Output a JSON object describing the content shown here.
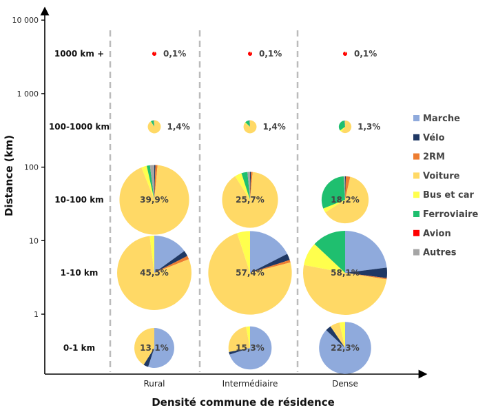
{
  "chart_data": {
    "type": "pie",
    "title": "",
    "xlabel": "Densité commune de résidence",
    "ylabel": "Distance (km)",
    "y_scale": "log",
    "ylim": [
      0.1,
      10000
    ],
    "y_ticks": [
      {
        "value": 1,
        "label": "1"
      },
      {
        "value": 10,
        "label": "10"
      },
      {
        "value": 100,
        "label": "100"
      },
      {
        "value": 1000,
        "label": "1 000"
      },
      {
        "value": 10000,
        "label": "10 000"
      }
    ],
    "categories": [
      "Rural",
      "Intermédiaire",
      "Dense"
    ],
    "distance_bands": [
      "1000 km +",
      "100-1000 km",
      "10-100 km",
      "1-10 km",
      "0-1 km"
    ],
    "modes": [
      "Marche",
      "Vélo",
      "2RM",
      "Voiture",
      "Bus et car",
      "Ferroviaire",
      "Avion",
      "Autres"
    ],
    "mode_colors": [
      "#8FAADC",
      "#1F3864",
      "#ED7D31",
      "#FFD966",
      "#FFFF4D",
      "#1FBF6F",
      "#FF0000",
      "#A5A5A5"
    ],
    "legend_position": "right",
    "pies": [
      {
        "category": "Rural",
        "band": "1000 km +",
        "label": "0,1%",
        "share": 0.1,
        "shares": [
          0,
          0,
          0,
          5,
          0,
          0,
          95,
          0
        ]
      },
      {
        "category": "Intermédiaire",
        "band": "1000 km +",
        "label": "0,1%",
        "share": 0.1,
        "shares": [
          0,
          0,
          0,
          5,
          0,
          0,
          95,
          0
        ]
      },
      {
        "category": "Dense",
        "band": "1000 km +",
        "label": "0,1%",
        "share": 0.1,
        "shares": [
          0,
          0,
          0,
          5,
          0,
          0,
          95,
          0
        ]
      },
      {
        "category": "Rural",
        "band": "100-1000 km",
        "label": "1,4%",
        "share": 1.4,
        "shares": [
          0,
          0,
          0,
          90,
          1,
          7,
          0,
          2
        ]
      },
      {
        "category": "Intermédiaire",
        "band": "100-1000 km",
        "label": "1,4%",
        "share": 1.4,
        "shares": [
          0,
          0,
          0,
          85,
          2,
          11,
          0,
          2
        ]
      },
      {
        "category": "Dense",
        "band": "100-1000 km",
        "label": "1,3%",
        "share": 1.3,
        "shares": [
          0,
          0,
          0,
          60,
          5,
          33,
          0,
          2
        ]
      },
      {
        "category": "Rural",
        "band": "10-100 km",
        "label": "39,9%",
        "share": 39.9,
        "shares": [
          0,
          0.5,
          1,
          92.5,
          2.5,
          1.5,
          0,
          2
        ]
      },
      {
        "category": "Intermédiaire",
        "band": "10-100 km",
        "label": "25,7%",
        "share": 25.7,
        "shares": [
          0,
          0.5,
          1,
          89.5,
          4,
          3.5,
          0,
          1.5
        ]
      },
      {
        "category": "Dense",
        "band": "10-100 km",
        "label": "18,2%",
        "share": 18.2,
        "shares": [
          0,
          0.5,
          3,
          62.5,
          3,
          30,
          0,
          1
        ]
      },
      {
        "category": "Rural",
        "band": "1-10 km",
        "label": "45,5%",
        "share": 45.5,
        "shares": [
          15,
          2.5,
          1.5,
          79,
          2,
          0,
          0,
          0
        ]
      },
      {
        "category": "Intermédiaire",
        "band": "1-10 km",
        "label": "57,4%",
        "share": 57.4,
        "shares": [
          17.5,
          2.5,
          1,
          74,
          5,
          0,
          0,
          0
        ]
      },
      {
        "category": "Dense",
        "band": "1-10 km",
        "label": "58,1%",
        "share": 58.1,
        "shares": [
          23,
          4,
          0.5,
          50.5,
          9,
          13,
          0,
          0
        ]
      },
      {
        "category": "Rural",
        "band": "0-1 km",
        "label": "13,1%",
        "share": 13.1,
        "shares": [
          55,
          4,
          0,
          41,
          0,
          0,
          0,
          0
        ]
      },
      {
        "category": "Intermédiaire",
        "band": "0-1 km",
        "label": "15,3%",
        "share": 15.3,
        "shares": [
          70,
          2,
          0,
          25,
          3,
          0,
          0,
          0
        ]
      },
      {
        "category": "Dense",
        "band": "0-1 km",
        "label": "22,3%",
        "share": 22.3,
        "shares": [
          87,
          3.5,
          0,
          6,
          3.5,
          0,
          0,
          0
        ]
      }
    ]
  }
}
